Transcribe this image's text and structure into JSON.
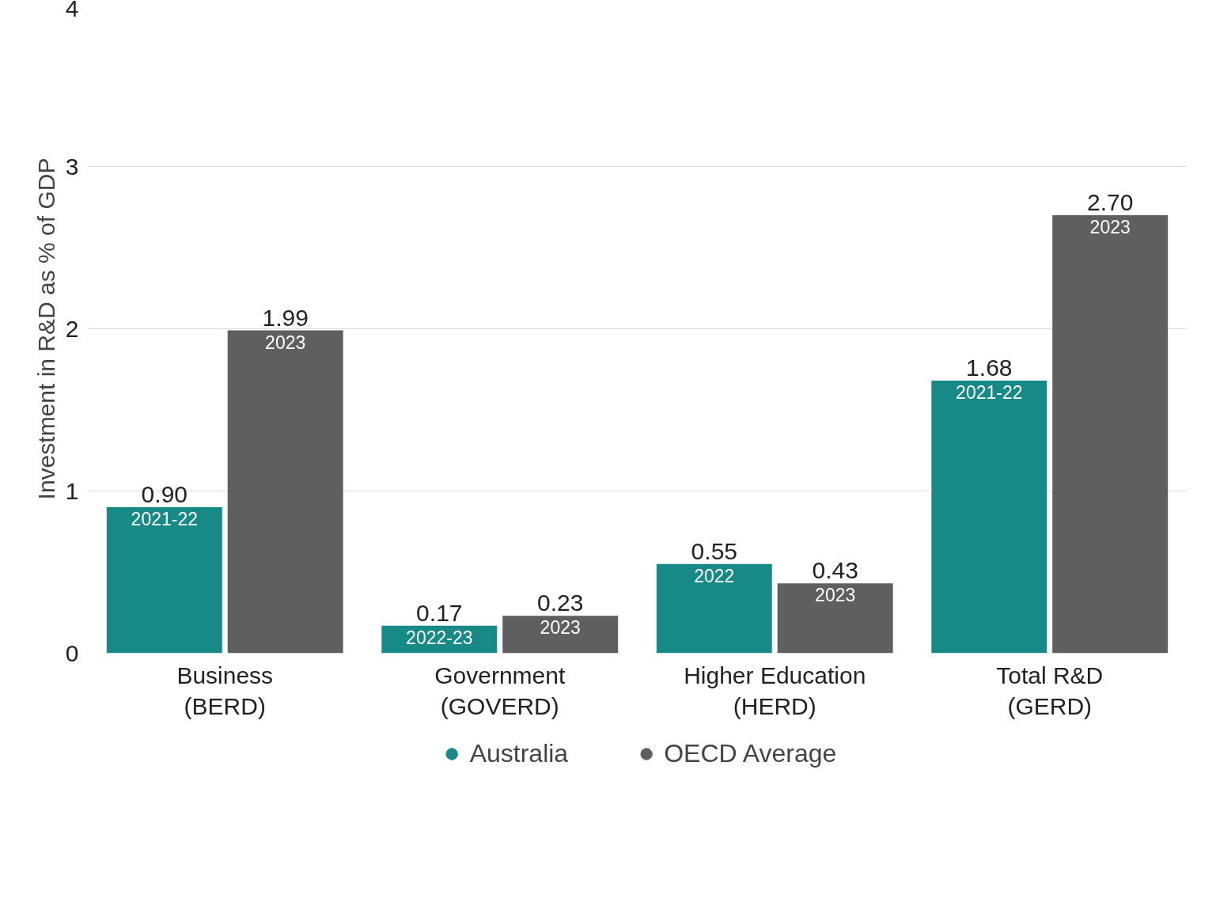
{
  "chart_data": {
    "type": "bar",
    "ylabel": "Investment in R&D as % of GDP",
    "categories": [
      "Business\n(BERD)",
      "Government\n(GOVERD)",
      "Higher Education\n(HERD)",
      "Total R&D\n(GERD)"
    ],
    "series": [
      {
        "name": "Australia",
        "color": "#178a87",
        "values": [
          0.9,
          0.17,
          0.55,
          1.68
        ],
        "value_labels": [
          "0.90",
          "0.17",
          "0.55",
          "1.68"
        ]
      },
      {
        "name": "OECD Average",
        "color": "#5f5f5f",
        "values": [
          1.99,
          0.23,
          0.43,
          2.7
        ],
        "value_labels": [
          "1.99",
          "0.23",
          "0.43",
          "2.70"
        ]
      }
    ],
    "annotations": [
      {
        "text": "2021-22",
        "x": "Business\n(BERD)",
        "y": 0.9
      },
      {
        "text": "2023",
        "x": "Business\n(BERD)",
        "y": 1.99
      },
      {
        "text": "2022-23",
        "x": "Government\n(GOVERD)",
        "y": 0.17
      },
      {
        "text": "2023",
        "x": "Government\n(GOVERD)",
        "y": 0.23
      },
      {
        "text": "2022",
        "x": "Higher Education\n(HERD)",
        "y": 0.55
      },
      {
        "text": "2023",
        "x": "Higher Education\n(HERD)",
        "y": 0.43
      },
      {
        "text": "2021-22",
        "x": "Total R&D\n(GERD)",
        "y": 1.68
      },
      {
        "text": "2023",
        "x": "Total R&D\n(GERD)",
        "y": 2.7
      }
    ],
    "ylim": [
      0,
      4
    ],
    "yticks": [
      0,
      1,
      2,
      3,
      4
    ],
    "grid": "y",
    "legend": "bottom"
  }
}
